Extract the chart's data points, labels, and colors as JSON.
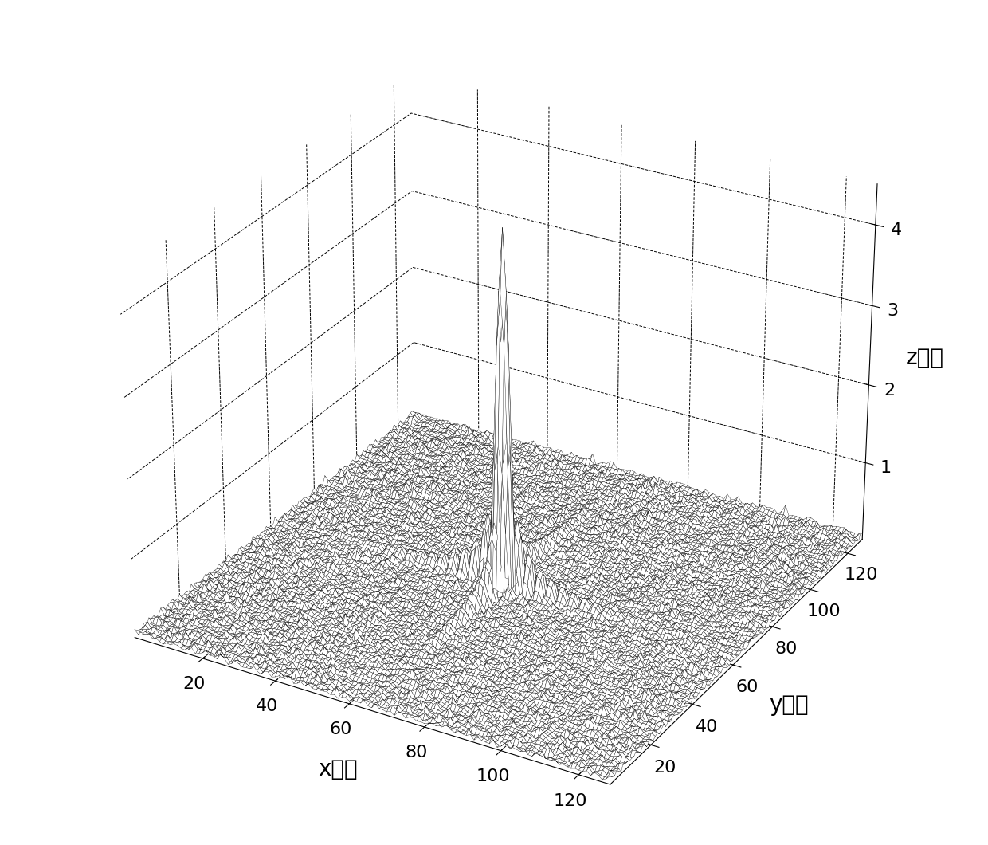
{
  "title": "",
  "xlabel": "x方向",
  "ylabel": "y方向",
  "zlabel": "z方向",
  "xlim": [
    1,
    128
  ],
  "ylim": [
    1,
    128
  ],
  "zlim": [
    0,
    4.5
  ],
  "xticks": [
    20,
    40,
    60,
    80,
    100,
    120
  ],
  "yticks": [
    20,
    40,
    60,
    80,
    100,
    120
  ],
  "zticks": [
    1,
    2,
    3,
    4
  ],
  "surface_color": "#ffffff",
  "surface_edge_color": "#000000",
  "surface_linewidth": 0.25,
  "figsize": [
    12.4,
    10.6
  ],
  "dpi": 100,
  "peak_x": 64,
  "peak_y": 64,
  "peak_height": 4.5,
  "grid_size": 128,
  "font_size": 16,
  "label_font_size": 20,
  "elev": 28,
  "azim": -60
}
